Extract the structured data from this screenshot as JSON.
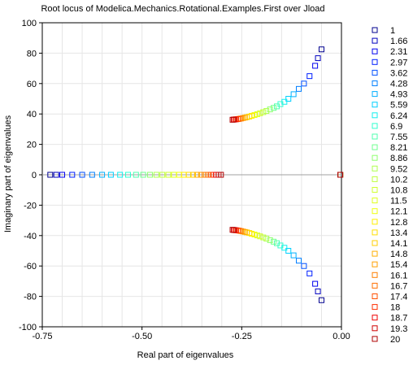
{
  "chart_data": {
    "type": "scatter",
    "title": "Root locus of Modelica.Mechanics.Rotational.Examples.First over Jload",
    "xlabel": "Real part of eigenvalues",
    "ylabel": "Imaginary part of eigenvalues",
    "xlim": [
      -0.75,
      0.0
    ],
    "ylim": [
      -100,
      100
    ],
    "x_ticks": [
      "-0.75",
      "-0.50",
      "-0.25",
      "0.00"
    ],
    "y_ticks": [
      "-100",
      "-80",
      "-60",
      "-40",
      "-20",
      "0",
      "20",
      "40",
      "60",
      "80",
      "100"
    ],
    "x_tick_values": [
      -0.75,
      -0.5,
      -0.25,
      0.0
    ],
    "y_tick_values": [
      -100,
      -80,
      -60,
      -40,
      -20,
      0,
      20,
      40,
      60,
      80,
      100
    ],
    "grid": true,
    "legend_position": "right",
    "marker": "square",
    "series": [
      {
        "name": "1",
        "color": "#00008f",
        "points": [
          [
            -0.05,
            82.5
          ],
          [
            -0.05,
            -82.5
          ],
          [
            -0.73,
            0
          ],
          [
            -0.003,
            0
          ]
        ]
      },
      {
        "name": "1.66",
        "color": "#0000bf",
        "points": [
          [
            -0.059,
            76.7
          ],
          [
            -0.059,
            -76.7
          ],
          [
            -0.715,
            0
          ],
          [
            -0.003,
            0
          ]
        ]
      },
      {
        "name": "2.31",
        "color": "#0000ef",
        "points": [
          [
            -0.066,
            71.7
          ],
          [
            -0.066,
            -71.7
          ],
          [
            -0.7,
            0
          ],
          [
            -0.003,
            0
          ]
        ]
      },
      {
        "name": "2.97",
        "color": "#001fff",
        "points": [
          [
            -0.08,
            64.9
          ],
          [
            -0.08,
            -64.9
          ],
          [
            -0.675,
            0
          ],
          [
            -0.003,
            0
          ]
        ]
      },
      {
        "name": "3.62",
        "color": "#004fff",
        "points": [
          [
            -0.094,
            60.0
          ],
          [
            -0.094,
            -60.0
          ],
          [
            -0.65,
            0
          ],
          [
            -0.003,
            0
          ]
        ]
      },
      {
        "name": "4.28",
        "color": "#007fff",
        "points": [
          [
            -0.107,
            56.5
          ],
          [
            -0.107,
            -56.5
          ],
          [
            -0.625,
            0
          ],
          [
            -0.003,
            0
          ]
        ]
      },
      {
        "name": "4.93",
        "color": "#00afff",
        "points": [
          [
            -0.12,
            53.0
          ],
          [
            -0.12,
            -53.0
          ],
          [
            -0.6,
            0
          ],
          [
            -0.003,
            0
          ]
        ]
      },
      {
        "name": "5.59",
        "color": "#00cfff",
        "points": [
          [
            -0.133,
            50.0
          ],
          [
            -0.133,
            -50.0
          ],
          [
            -0.578,
            0
          ],
          [
            -0.003,
            0
          ]
        ]
      },
      {
        "name": "6.24",
        "color": "#10efef",
        "points": [
          [
            -0.143,
            48.0
          ],
          [
            -0.143,
            -48.0
          ],
          [
            -0.555,
            0
          ],
          [
            -0.003,
            0
          ]
        ]
      },
      {
        "name": "6.9",
        "color": "#2fffcf",
        "points": [
          [
            -0.153,
            46.5
          ],
          [
            -0.153,
            -46.5
          ],
          [
            -0.535,
            0
          ],
          [
            -0.003,
            0
          ]
        ]
      },
      {
        "name": "7.55",
        "color": "#4fffaf",
        "points": [
          [
            -0.162,
            45.0
          ],
          [
            -0.162,
            -45.0
          ],
          [
            -0.515,
            0
          ],
          [
            -0.003,
            0
          ]
        ]
      },
      {
        "name": "8.21",
        "color": "#6fff8f",
        "points": [
          [
            -0.17,
            44.0
          ],
          [
            -0.17,
            -44.0
          ],
          [
            -0.497,
            0
          ],
          [
            -0.003,
            0
          ]
        ]
      },
      {
        "name": "8.86",
        "color": "#8fff6f",
        "points": [
          [
            -0.179,
            43.0
          ],
          [
            -0.179,
            -43.0
          ],
          [
            -0.48,
            0
          ],
          [
            -0.003,
            0
          ]
        ]
      },
      {
        "name": "9.52",
        "color": "#afff4f",
        "points": [
          [
            -0.188,
            42.0
          ],
          [
            -0.188,
            -42.0
          ],
          [
            -0.464,
            0
          ],
          [
            -0.003,
            0
          ]
        ]
      },
      {
        "name": "10.2",
        "color": "#bfff3f",
        "points": [
          [
            -0.196,
            41.2
          ],
          [
            -0.196,
            -41.2
          ],
          [
            -0.449,
            0
          ],
          [
            -0.003,
            0
          ]
        ]
      },
      {
        "name": "10.8",
        "color": "#cfff2f",
        "points": [
          [
            -0.204,
            40.5
          ],
          [
            -0.204,
            -40.5
          ],
          [
            -0.434,
            0
          ],
          [
            -0.003,
            0
          ]
        ]
      },
      {
        "name": "11.5",
        "color": "#dfff1f",
        "points": [
          [
            -0.211,
            39.9
          ],
          [
            -0.211,
            -39.9
          ],
          [
            -0.42,
            0
          ],
          [
            -0.003,
            0
          ]
        ]
      },
      {
        "name": "12.1",
        "color": "#efff0f",
        "points": [
          [
            -0.218,
            39.3
          ],
          [
            -0.218,
            -39.3
          ],
          [
            -0.407,
            0
          ],
          [
            -0.003,
            0
          ]
        ]
      },
      {
        "name": "12.8",
        "color": "#ffef00",
        "points": [
          [
            -0.225,
            38.8
          ],
          [
            -0.225,
            -38.8
          ],
          [
            -0.395,
            0
          ],
          [
            -0.003,
            0
          ]
        ]
      },
      {
        "name": "13.4",
        "color": "#ffdf00",
        "points": [
          [
            -0.231,
            38.3
          ],
          [
            -0.231,
            -38.3
          ],
          [
            -0.383,
            0
          ],
          [
            -0.003,
            0
          ]
        ]
      },
      {
        "name": "14.1",
        "color": "#ffcf00",
        "points": [
          [
            -0.237,
            37.9
          ],
          [
            -0.237,
            -37.9
          ],
          [
            -0.372,
            0
          ],
          [
            -0.003,
            0
          ]
        ]
      },
      {
        "name": "14.8",
        "color": "#ffaf00",
        "points": [
          [
            -0.242,
            37.6
          ],
          [
            -0.242,
            -37.6
          ],
          [
            -0.362,
            0
          ],
          [
            -0.003,
            0
          ]
        ]
      },
      {
        "name": "15.4",
        "color": "#ff9f00",
        "points": [
          [
            -0.247,
            37.3
          ],
          [
            -0.247,
            -37.3
          ],
          [
            -0.352,
            0
          ],
          [
            -0.003,
            0
          ]
        ]
      },
      {
        "name": "16.1",
        "color": "#ff7f00",
        "points": [
          [
            -0.252,
            37.0
          ],
          [
            -0.252,
            -37.0
          ],
          [
            -0.343,
            0
          ],
          [
            -0.003,
            0
          ]
        ]
      },
      {
        "name": "16.7",
        "color": "#ff6f00",
        "points": [
          [
            -0.256,
            36.8
          ],
          [
            -0.256,
            -36.8
          ],
          [
            -0.335,
            0
          ],
          [
            -0.003,
            0
          ]
        ]
      },
      {
        "name": "17.4",
        "color": "#ff4f00",
        "points": [
          [
            -0.26,
            36.6
          ],
          [
            -0.26,
            -36.6
          ],
          [
            -0.327,
            0
          ],
          [
            -0.003,
            0
          ]
        ]
      },
      {
        "name": "18",
        "color": "#ff2f00",
        "points": [
          [
            -0.264,
            36.5
          ],
          [
            -0.264,
            -36.5
          ],
          [
            -0.32,
            0
          ],
          [
            -0.003,
            0
          ]
        ]
      },
      {
        "name": "18.7",
        "color": "#ef0000",
        "points": [
          [
            -0.267,
            36.4
          ],
          [
            -0.267,
            -36.4
          ],
          [
            -0.314,
            0
          ],
          [
            -0.003,
            0
          ]
        ]
      },
      {
        "name": "19.3",
        "color": "#cf0000",
        "points": [
          [
            -0.27,
            36.3
          ],
          [
            -0.27,
            -36.3
          ],
          [
            -0.308,
            0
          ],
          [
            -0.003,
            0
          ]
        ]
      },
      {
        "name": "20",
        "color": "#af0000",
        "points": [
          [
            -0.273,
            36.2
          ],
          [
            -0.273,
            -36.2
          ],
          [
            -0.302,
            0
          ],
          [
            -0.003,
            0
          ]
        ]
      }
    ]
  }
}
